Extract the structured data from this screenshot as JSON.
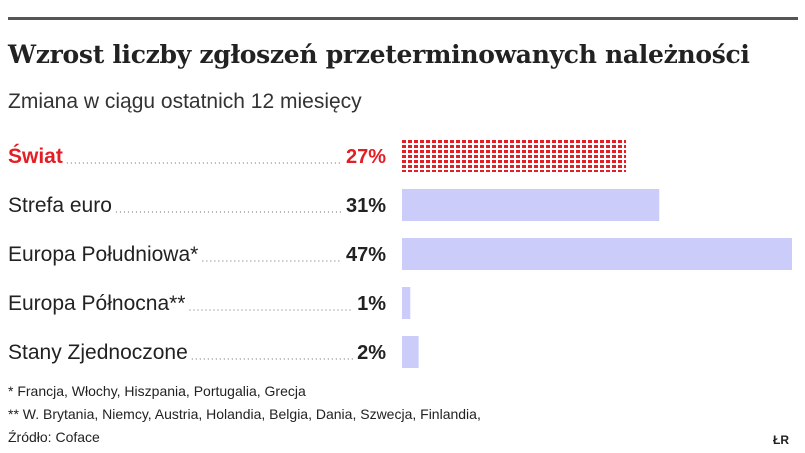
{
  "title": "Wzrost liczby zgłoszeń przeterminowanych należności",
  "subtitle": "Zmiana w ciągu ostatnich 12 miesięcy",
  "chart_data": {
    "type": "bar",
    "orientation": "horizontal",
    "categories": [
      "Świat",
      "Strefa euro",
      "Europa Południowa*",
      "Europa Północna**",
      "Stany Zjednoczone"
    ],
    "values": [
      27,
      31,
      47,
      1,
      2
    ],
    "value_labels": [
      "27%",
      "31%",
      "47%",
      "1%",
      "2%"
    ],
    "highlight_index": 0,
    "xlim": [
      0,
      47
    ],
    "grid": false,
    "legend": "none"
  },
  "colors": {
    "bar": "#ccccfb",
    "highlight": "#e31e24",
    "text": "#222222",
    "leader": "#9a9a9a"
  },
  "footnotes": [
    "* Francja, Włochy, Hiszpania, Portugalia, Grecja",
    "** W. Brytania, Niemcy, Austria, Holandia, Belgia, Dania, Szwecja, Finlandia,",
    "Źródło: Coface"
  ],
  "credit": "ŁR"
}
